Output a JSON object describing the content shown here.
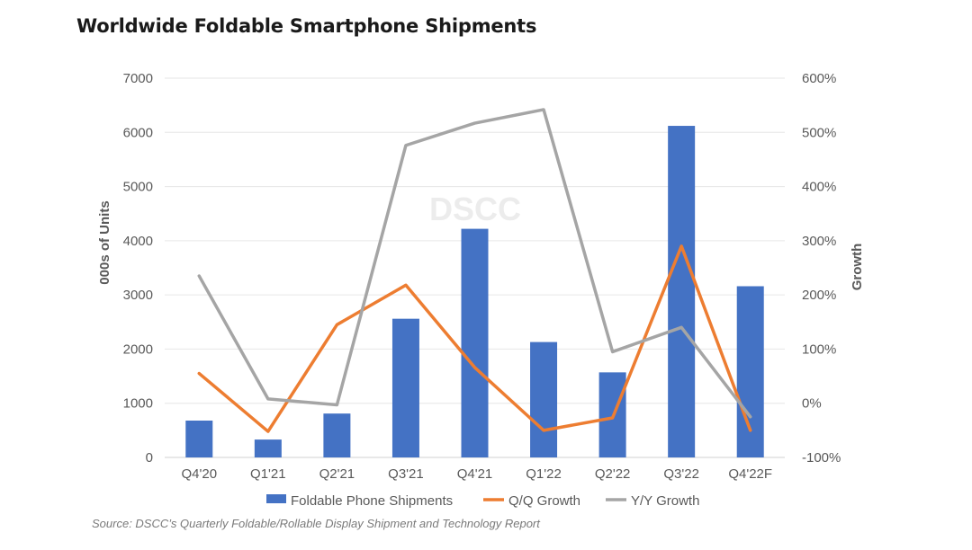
{
  "title": "Worldwide Foldable Smartphone Shipments",
  "source": "Source: DSCC’s Quarterly Foldable/Rollable Display Shipment and Technology Report",
  "watermark": "DSCC",
  "colors": {
    "bars": "#4472c4",
    "qq": "#ed7d31",
    "yy": "#a5a5a5",
    "grid": "#e6e6e6",
    "text": "#595959"
  },
  "chart_data": {
    "type": "bar",
    "categories": [
      "Q4'20",
      "Q1'21",
      "Q2'21",
      "Q3'21",
      "Q4'21",
      "Q1'22",
      "Q2'22",
      "Q3'22",
      "Q4'22F"
    ],
    "series": [
      {
        "name": "Foldable Phone Shipments",
        "type": "bar",
        "axis": "left",
        "values": [
          680,
          330,
          810,
          2560,
          4220,
          2130,
          1570,
          6120,
          3160
        ]
      },
      {
        "name": "Q/Q Growth",
        "type": "line",
        "axis": "right",
        "values": [
          55,
          -52,
          145,
          218,
          66,
          -50,
          -27,
          290,
          -50
        ]
      },
      {
        "name": "Y/Y Growth",
        "type": "line",
        "axis": "right",
        "values": [
          235,
          8,
          -3,
          476,
          517,
          542,
          95,
          140,
          -25
        ]
      }
    ],
    "left_axis": {
      "label": "000s of Units",
      "min": 0,
      "max": 7000,
      "step": 1000,
      "ticks": [
        "0",
        "1000",
        "2000",
        "3000",
        "4000",
        "5000",
        "6000",
        "7000"
      ]
    },
    "right_axis": {
      "label": "Growth",
      "min": -100,
      "max": 600,
      "step": 100,
      "ticks": [
        "-100%",
        "0%",
        "100%",
        "200%",
        "300%",
        "400%",
        "500%",
        "600%"
      ]
    },
    "legend_position": "bottom",
    "grid": true
  }
}
